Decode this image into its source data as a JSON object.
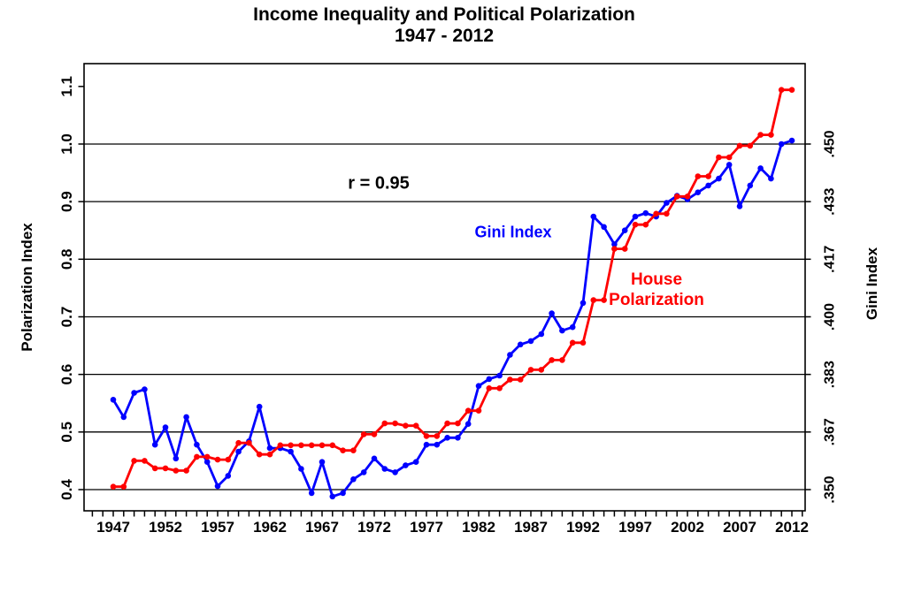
{
  "title": {
    "line1": "Income Inequality and Political Polarization",
    "line2": "1947 - 2012"
  },
  "annotations": {
    "correlation": "r = 0.95",
    "gini_label": "Gini Index",
    "house_line1": "House",
    "house_line2": "Polarization"
  },
  "colors": {
    "gini_series": "#0000ff",
    "house_series": "#ff0000",
    "axis": "#000000",
    "background": "#ffffff"
  },
  "axes": {
    "left": {
      "title": "Polarization Index",
      "tick_values": [
        0.4,
        0.5,
        0.6,
        0.7,
        0.8,
        0.9,
        1.0,
        1.1
      ],
      "tick_labels": [
        "0.4",
        "0.5",
        "0.6",
        "0.7",
        "0.8",
        "0.9",
        "1.0",
        "1.1"
      ]
    },
    "right": {
      "title": "Gini Index",
      "tick_labels": [
        ".350",
        ".367",
        ".383",
        ".400",
        ".417",
        ".433",
        ".450"
      ],
      "tick_pol_positions": [
        0.4,
        0.5,
        0.6,
        0.7,
        0.8,
        0.9,
        1.0
      ]
    },
    "bottom": {
      "labeled_years": [
        1947,
        1952,
        1957,
        1962,
        1967,
        1972,
        1977,
        1982,
        1987,
        1992,
        1997,
        2002,
        2007,
        2012
      ],
      "minor_tick_range": [
        1945,
        2013
      ]
    }
  },
  "chart_data": {
    "type": "line",
    "title": "Income Inequality and Political Polarization 1947 - 2012",
    "xlabel": "",
    "ylabel_left": "Polarization Index",
    "ylabel_right": "Gini Index",
    "left_ylim": [
      0.357,
      1.14
    ],
    "x_range": [
      1947,
      2012
    ],
    "grid": "horizontal",
    "gridlines_pol": [
      0.4,
      0.5,
      0.6,
      0.7,
      0.8,
      0.9,
      1.0
    ],
    "gini_to_pol_mapping": "pol = 0.4 + (gini - 0.35) * 6",
    "correlation_r": 0.95,
    "years": [
      1947,
      1948,
      1949,
      1950,
      1951,
      1952,
      1953,
      1954,
      1955,
      1956,
      1957,
      1958,
      1959,
      1960,
      1961,
      1962,
      1963,
      1964,
      1965,
      1966,
      1967,
      1968,
      1969,
      1970,
      1971,
      1972,
      1973,
      1974,
      1975,
      1976,
      1977,
      1978,
      1979,
      1980,
      1981,
      1982,
      1983,
      1984,
      1985,
      1986,
      1987,
      1988,
      1989,
      1990,
      1991,
      1992,
      1993,
      1994,
      1995,
      1996,
      1997,
      1998,
      1999,
      2000,
      2001,
      2002,
      2003,
      2004,
      2005,
      2006,
      2007,
      2008,
      2009,
      2010,
      2011,
      2012
    ],
    "series": [
      {
        "name": "Gini Index",
        "color": "#0000ff",
        "axis": "right",
        "unit": "gini",
        "values": [
          0.376,
          0.371,
          0.378,
          0.379,
          0.363,
          0.368,
          0.359,
          0.371,
          0.363,
          0.358,
          0.351,
          0.354,
          0.361,
          0.364,
          0.374,
          0.362,
          0.362,
          0.361,
          0.356,
          0.349,
          0.358,
          0.348,
          0.349,
          0.353,
          0.355,
          0.359,
          0.356,
          0.355,
          0.357,
          0.358,
          0.363,
          0.363,
          0.365,
          0.365,
          0.369,
          0.38,
          0.382,
          0.383,
          0.389,
          0.392,
          0.393,
          0.395,
          0.401,
          0.396,
          0.397,
          0.404,
          0.429,
          0.426,
          0.421,
          0.425,
          0.429,
          0.43,
          0.429,
          0.433,
          0.435,
          0.434,
          0.436,
          0.438,
          0.44,
          0.444,
          0.432,
          0.438,
          0.443,
          0.44,
          0.45,
          0.451
        ]
      },
      {
        "name": "House Polarization",
        "color": "#ff0000",
        "axis": "left",
        "unit": "polarization_index",
        "values": [
          0.405,
          0.405,
          0.45,
          0.45,
          0.437,
          0.437,
          0.433,
          0.433,
          0.457,
          0.457,
          0.452,
          0.452,
          0.481,
          0.481,
          0.461,
          0.461,
          0.477,
          0.477,
          0.477,
          0.477,
          0.477,
          0.477,
          0.468,
          0.468,
          0.496,
          0.496,
          0.515,
          0.515,
          0.511,
          0.511,
          0.493,
          0.493,
          0.515,
          0.515,
          0.537,
          0.537,
          0.576,
          0.576,
          0.591,
          0.591,
          0.608,
          0.608,
          0.625,
          0.625,
          0.655,
          0.655,
          0.729,
          0.729,
          0.818,
          0.818,
          0.86,
          0.86,
          0.879,
          0.879,
          0.909,
          0.909,
          0.944,
          0.944,
          0.977,
          0.977,
          0.997,
          0.997,
          1.016,
          1.016,
          1.094,
          1.094
        ]
      }
    ]
  }
}
